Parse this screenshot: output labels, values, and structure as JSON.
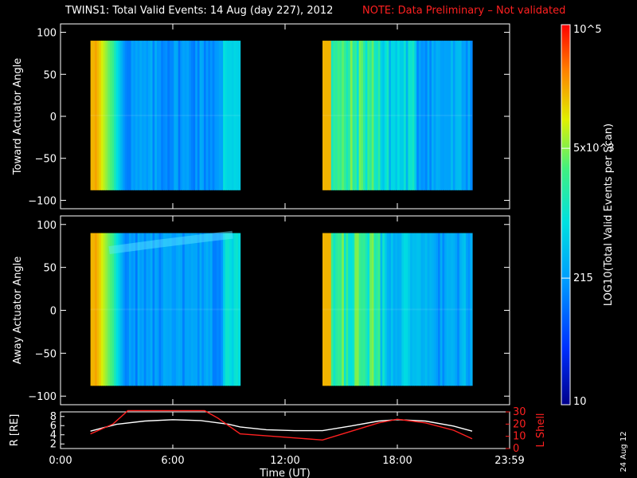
{
  "title": {
    "main": "TWINS1: Total Valid Events: 14 Aug (day 227), 2012",
    "note": "NOTE: Data Preliminary – Not validated"
  },
  "stamp": "24 Aug 12",
  "colorbar": {
    "label": "LOG10(Total Valid Events per Scan)",
    "ticks": [
      "10^5",
      "5x10^3",
      "215",
      "10"
    ],
    "tick_values": [
      100000,
      5000,
      215,
      10
    ],
    "range": [
      10,
      100000
    ],
    "scale": "log",
    "colormap": "rainbow (dark blue to red)"
  },
  "chart_data": [
    {
      "type": "heatmap",
      "panel": "top",
      "ylabel": "Toward Actuator Angle",
      "ylim": [
        -110,
        110
      ],
      "yticks": [
        "100",
        "50",
        "0",
        "−50",
        "−100"
      ],
      "ytick_values": [
        100,
        50,
        0,
        -50,
        -100
      ],
      "xlim_hours": [
        0,
        24
      ],
      "data_blocks": [
        {
          "start_hours": 1.6,
          "end_hours": 9.6,
          "angle_range": [
            -88,
            90
          ]
        },
        {
          "start_hours": 14.0,
          "end_hours": 22.0,
          "angle_range": [
            -88,
            90
          ]
        }
      ]
    },
    {
      "type": "heatmap",
      "panel": "middle",
      "ylabel": "Away Actuator Angle",
      "ylim": [
        -110,
        110
      ],
      "yticks": [
        "100",
        "50",
        "0",
        "−50",
        "−100"
      ],
      "ytick_values": [
        100,
        50,
        0,
        -50,
        -100
      ],
      "xlim_hours": [
        0,
        24
      ],
      "data_blocks": [
        {
          "start_hours": 1.6,
          "end_hours": 9.6,
          "angle_range": [
            -88,
            90
          ]
        },
        {
          "start_hours": 14.0,
          "end_hours": 22.0,
          "angle_range": [
            -88,
            90
          ]
        }
      ]
    },
    {
      "type": "line",
      "panel": "bottom",
      "xlabel": "Time (UT)",
      "xticks": [
        "0:00",
        "6:00",
        "12:00",
        "18:00",
        "23:59"
      ],
      "xtick_values": [
        0,
        6,
        12,
        18,
        24
      ],
      "ylabel_left": "R [RE]",
      "ylim_left": [
        1,
        9
      ],
      "yticks_left": [
        "8",
        "6",
        "4",
        "2"
      ],
      "ylabel_right": "L Shell",
      "ylim_right": [
        0,
        30
      ],
      "yticks_right": [
        "30",
        "20",
        "10",
        "0"
      ],
      "series": [
        {
          "name": "R [RE]",
          "color": "#ffffff",
          "axis": "left",
          "x": [
            1.6,
            3,
            4.5,
            6,
            7.5,
            9,
            9.6,
            11,
            12.5,
            14,
            15.5,
            17,
            18,
            19.5,
            21,
            22
          ],
          "y": [
            4.8,
            6.3,
            7.0,
            7.3,
            7.1,
            6.3,
            5.7,
            5.1,
            4.9,
            4.9,
            5.9,
            7.0,
            7.3,
            7.0,
            5.9,
            4.8
          ]
        },
        {
          "name": "L Shell",
          "color": "#ff2020",
          "axis": "right",
          "x": [
            1.6,
            2.8,
            3.6,
            7.7,
            8.4,
            9.6,
            14.0,
            15.5,
            17.0,
            18.0,
            19.5,
            21.0,
            22.0
          ],
          "y": [
            12,
            20,
            31,
            31,
            25,
            12,
            7,
            14,
            21,
            24,
            21,
            15,
            8
          ]
        }
      ]
    }
  ]
}
